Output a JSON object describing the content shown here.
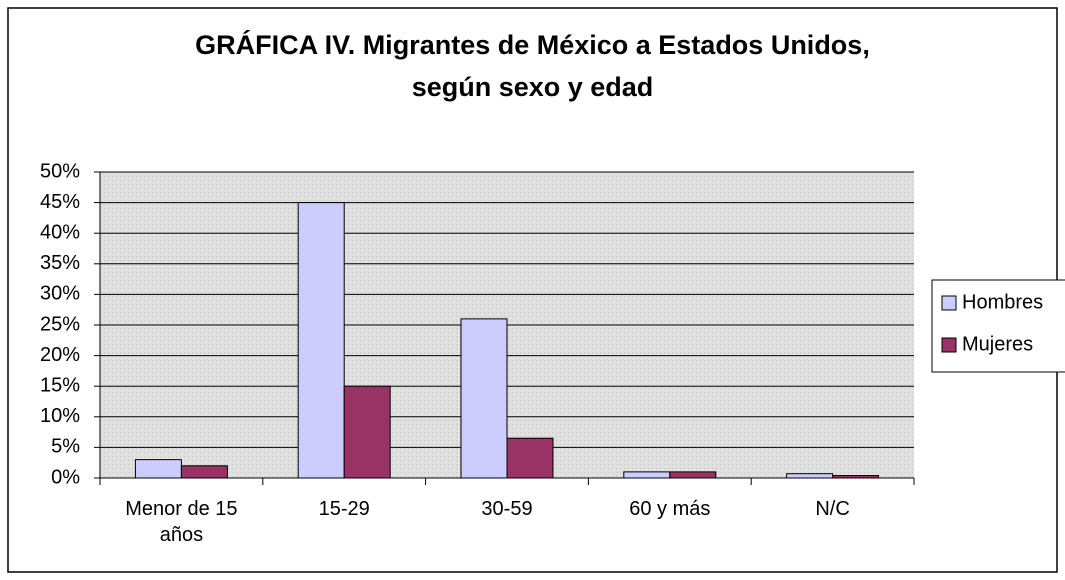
{
  "chart_data": {
    "type": "bar",
    "title": [
      "GRÁFICA IV. Migrantes de México a Estados Unidos,",
      "según sexo y edad"
    ],
    "categories": [
      "Menor de 15 años",
      "15-29",
      "30-59",
      "60 y más",
      "N/C"
    ],
    "series": [
      {
        "name": "Hombres",
        "color": "#ccccff",
        "values": [
          3,
          45,
          26,
          1,
          0.7
        ]
      },
      {
        "name": "Mujeres",
        "color": "#993366",
        "values": [
          2,
          15,
          6.5,
          1,
          0.4
        ]
      }
    ],
    "ylim": [
      0,
      50
    ],
    "yticks": [
      {
        "value": 0,
        "label": "0%"
      },
      {
        "value": 5,
        "label": "5%"
      },
      {
        "value": 10,
        "label": "10%"
      },
      {
        "value": 15,
        "label": "15%"
      },
      {
        "value": 20,
        "label": "20%"
      },
      {
        "value": 25,
        "label": "25%"
      },
      {
        "value": 30,
        "label": "30%"
      },
      {
        "value": 35,
        "label": "35%"
      },
      {
        "value": 40,
        "label": "40%"
      },
      {
        "value": 45,
        "label": "45%"
      },
      {
        "value": 50,
        "label": "50%"
      }
    ],
    "grid": true,
    "legend": "right"
  }
}
